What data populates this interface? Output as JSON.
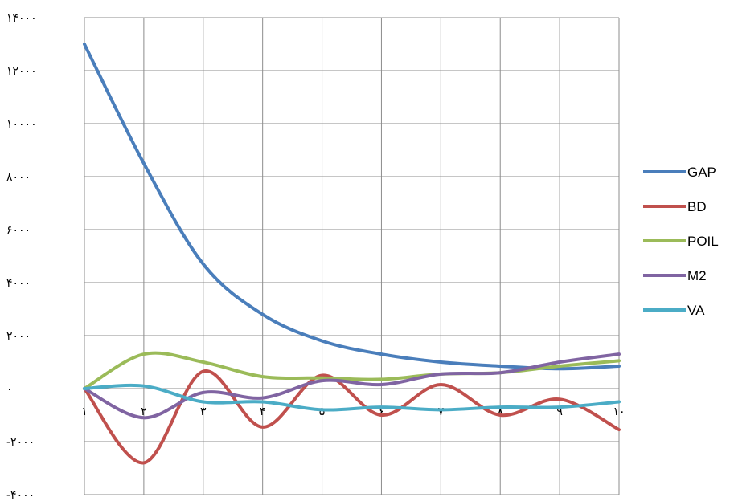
{
  "chart_data": {
    "type": "line",
    "title": "",
    "xlabel": "",
    "ylabel": "",
    "x": [
      1,
      2,
      3,
      4,
      5,
      6,
      7,
      8,
      9,
      10
    ],
    "x_tick_labels": [
      "۱",
      "۲",
      "۳",
      "۴",
      "۵",
      "۶",
      "۷",
      "۸",
      "۹",
      "۱۰"
    ],
    "ylim": [
      -4000,
      14000
    ],
    "y_ticks": [
      -4000,
      -2000,
      0,
      2000,
      4000,
      6000,
      8000,
      10000,
      12000,
      14000
    ],
    "y_tick_labels": [
      "-۴۰۰۰",
      "-۲۰۰۰",
      "۰",
      "۲۰۰۰",
      "۴۰۰۰",
      "۶۰۰۰",
      "۸۰۰۰",
      "۱۰۰۰۰",
      "۱۲۰۰۰",
      "۱۴۰۰۰"
    ],
    "grid": true,
    "legend_position": "right",
    "series": [
      {
        "name": "GAP",
        "color": "#4a7ebb",
        "values": [
          13000,
          8500,
          4700,
          2800,
          1800,
          1300,
          1000,
          850,
          750,
          850
        ]
      },
      {
        "name": "BD",
        "color": "#c0504d",
        "values": [
          0,
          -2800,
          650,
          -1450,
          500,
          -1000,
          150,
          -1000,
          -400,
          -1550
        ]
      },
      {
        "name": "POIL",
        "color": "#9bbb59",
        "values": [
          0,
          1300,
          1000,
          450,
          400,
          350,
          550,
          600,
          850,
          1050
        ]
      },
      {
        "name": "M2",
        "color": "#8064a2",
        "values": [
          0,
          -1100,
          -150,
          -350,
          300,
          150,
          550,
          600,
          1000,
          1300
        ]
      },
      {
        "name": "VA",
        "color": "#4bacc6",
        "values": [
          0,
          100,
          -500,
          -500,
          -800,
          -700,
          -800,
          -700,
          -700,
          -500
        ]
      }
    ]
  }
}
